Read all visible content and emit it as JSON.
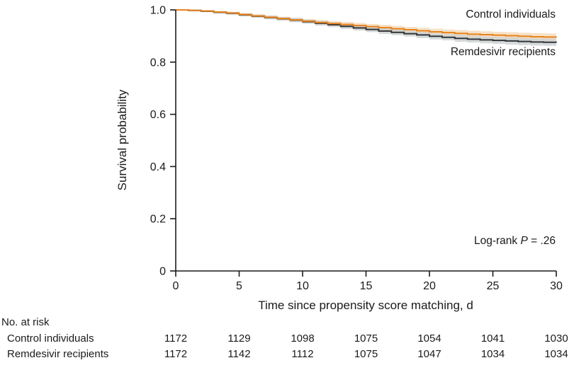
{
  "chart_data": {
    "type": "line",
    "subtype": "kaplan-meier-step",
    "title": "",
    "xlabel": "Time since propensity score matching, d",
    "ylabel": "Survival probability",
    "xlim": [
      0,
      30
    ],
    "ylim": [
      0,
      1.0
    ],
    "grid": false,
    "legend_position": "labels-on-chart",
    "xticks": [
      {
        "label": "0",
        "value": 0
      },
      {
        "label": "5",
        "value": 5
      },
      {
        "label": "10",
        "value": 10
      },
      {
        "label": "15",
        "value": 15
      },
      {
        "label": "20",
        "value": 20
      },
      {
        "label": "25",
        "value": 25
      },
      {
        "label": "30",
        "value": 30
      }
    ],
    "yticks": [
      {
        "label": "1.0",
        "value": 1.0
      },
      {
        "label": "0.8",
        "value": 0.8
      },
      {
        "label": "0.6",
        "value": 0.6
      },
      {
        "label": "0.4",
        "value": 0.4
      },
      {
        "label": "0.2",
        "value": 0.2
      },
      {
        "label": "0",
        "value": 0
      }
    ],
    "annotation": {
      "prefix": "Log-rank ",
      "italic": "P",
      "suffix": " = .26"
    },
    "series": [
      {
        "name": "Control individuals",
        "color": "#E6821E",
        "band_color": "#F3D8B4",
        "x_days": [
          0,
          1,
          2,
          3,
          4,
          5,
          6,
          7,
          8,
          9,
          10,
          11,
          12,
          13,
          14,
          15,
          16,
          17,
          18,
          19,
          20,
          21,
          22,
          23,
          24,
          25,
          26,
          27,
          28,
          29,
          30
        ],
        "values": [
          1.0,
          0.998,
          0.996,
          0.992,
          0.988,
          0.982,
          0.977,
          0.972,
          0.967,
          0.962,
          0.957,
          0.952,
          0.948,
          0.944,
          0.94,
          0.936,
          0.932,
          0.928,
          0.924,
          0.92,
          0.916,
          0.913,
          0.91,
          0.907,
          0.905,
          0.903,
          0.901,
          0.899,
          0.897,
          0.896,
          0.895
        ],
        "ci_halfwidth": [
          0.001,
          0.002,
          0.003,
          0.004,
          0.005,
          0.006,
          0.006,
          0.007,
          0.007,
          0.008,
          0.008,
          0.009,
          0.009,
          0.01,
          0.01,
          0.01,
          0.011,
          0.011,
          0.011,
          0.012,
          0.012,
          0.012,
          0.013,
          0.013,
          0.013,
          0.013,
          0.014,
          0.014,
          0.014,
          0.014,
          0.014
        ]
      },
      {
        "name": "Remdesivir recipients",
        "color": "#2F3437",
        "band_color": "#C9CDCE",
        "x_days": [
          0,
          1,
          2,
          3,
          4,
          5,
          6,
          7,
          8,
          9,
          10,
          11,
          12,
          13,
          14,
          15,
          16,
          17,
          18,
          19,
          20,
          21,
          22,
          23,
          24,
          25,
          26,
          27,
          28,
          29,
          30
        ],
        "values": [
          1.0,
          0.998,
          0.995,
          0.991,
          0.987,
          0.981,
          0.976,
          0.971,
          0.966,
          0.961,
          0.955,
          0.949,
          0.943,
          0.937,
          0.931,
          0.925,
          0.919,
          0.914,
          0.909,
          0.904,
          0.899,
          0.895,
          0.891,
          0.888,
          0.885,
          0.883,
          0.881,
          0.879,
          0.877,
          0.876,
          0.875
        ],
        "ci_halfwidth": [
          0.001,
          0.002,
          0.003,
          0.004,
          0.005,
          0.006,
          0.006,
          0.007,
          0.007,
          0.008,
          0.008,
          0.009,
          0.009,
          0.01,
          0.01,
          0.01,
          0.011,
          0.011,
          0.011,
          0.012,
          0.012,
          0.012,
          0.013,
          0.013,
          0.013,
          0.013,
          0.014,
          0.014,
          0.014,
          0.014,
          0.014
        ]
      }
    ],
    "risk_table": {
      "title": "No. at risk",
      "timepoints": [
        0,
        5,
        10,
        15,
        20,
        25,
        30
      ],
      "rows": [
        {
          "label": "Control individuals",
          "counts": [
            1172,
            1129,
            1098,
            1075,
            1054,
            1041,
            1030
          ]
        },
        {
          "label": "Remdesivir recipients",
          "counts": [
            1172,
            1142,
            1112,
            1075,
            1047,
            1034,
            1034
          ]
        }
      ]
    }
  }
}
